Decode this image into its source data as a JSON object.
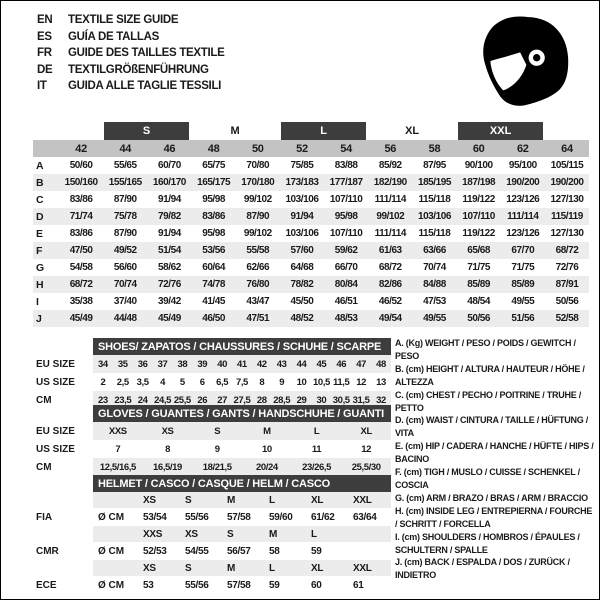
{
  "header": {
    "languages": [
      {
        "code": "EN",
        "text": "TEXTILE SIZE GUIDE"
      },
      {
        "code": "ES",
        "text": "GUÍA DE TALLAS"
      },
      {
        "code": "FR",
        "text": "GUIDE DES TAILLES TEXTILE"
      },
      {
        "code": "DE",
        "text": "TEXTILGRÖßENFÜHRUNG"
      },
      {
        "code": "IT",
        "text": "GUIDA ALLE TAGLIE TESSILI"
      }
    ],
    "logo": "racing-helmet-icon"
  },
  "colors": {
    "dark_bar": "#3d3d3d",
    "size_band": "#c3c3c3",
    "row_stripe": "#ececec",
    "text": "#1a1a1a"
  },
  "main_table": {
    "groups": [
      {
        "label": "S",
        "style": "dark"
      },
      {
        "label": "M",
        "style": "light"
      },
      {
        "label": "L",
        "style": "dark"
      },
      {
        "label": "XL",
        "style": "light"
      },
      {
        "label": "XXL",
        "style": "dark"
      }
    ],
    "sizes": [
      "42",
      "44",
      "46",
      "48",
      "50",
      "52",
      "54",
      "56",
      "58",
      "60",
      "62",
      "64"
    ],
    "rows": [
      {
        "label": "A",
        "values": [
          "50/60",
          "55/65",
          "60/70",
          "65/75",
          "70/80",
          "75/85",
          "83/88",
          "85/92",
          "87/95",
          "90/100",
          "95/100",
          "105/115"
        ]
      },
      {
        "label": "B",
        "values": [
          "150/160",
          "155/165",
          "160/170",
          "165/175",
          "170/180",
          "173/183",
          "177/187",
          "182/190",
          "185/195",
          "187/198",
          "190/200",
          "190/200"
        ]
      },
      {
        "label": "C",
        "values": [
          "83/86",
          "87/90",
          "91/94",
          "95/98",
          "99/102",
          "103/106",
          "107/110",
          "111/114",
          "115/118",
          "119/122",
          "123/126",
          "127/130"
        ]
      },
      {
        "label": "D",
        "values": [
          "71/74",
          "75/78",
          "79/82",
          "83/86",
          "87/90",
          "91/94",
          "95/98",
          "99/102",
          "103/106",
          "107/110",
          "111/114",
          "115/119"
        ]
      },
      {
        "label": "E",
        "values": [
          "83/86",
          "87/90",
          "91/94",
          "95/98",
          "99/102",
          "103/106",
          "107/110",
          "111/114",
          "115/118",
          "119/122",
          "123/126",
          "127/130"
        ]
      },
      {
        "label": "F",
        "values": [
          "47/50",
          "49/52",
          "51/54",
          "53/56",
          "55/58",
          "57/60",
          "59/62",
          "61/63",
          "63/66",
          "65/68",
          "67/70",
          "68/72"
        ]
      },
      {
        "label": "G",
        "values": [
          "54/58",
          "56/60",
          "58/62",
          "60/64",
          "62/66",
          "64/68",
          "66/70",
          "68/72",
          "70/74",
          "71/75",
          "71/75",
          "72/76"
        ]
      },
      {
        "label": "H",
        "values": [
          "68/72",
          "70/74",
          "72/76",
          "74/78",
          "76/80",
          "78/82",
          "80/84",
          "82/86",
          "84/88",
          "85/89",
          "85/89",
          "87/91"
        ]
      },
      {
        "label": "I",
        "values": [
          "35/38",
          "37/40",
          "39/42",
          "41/45",
          "43/47",
          "45/50",
          "46/51",
          "46/52",
          "47/53",
          "48/54",
          "49/55",
          "50/56"
        ]
      },
      {
        "label": "J",
        "values": [
          "45/49",
          "44/48",
          "45/49",
          "46/50",
          "47/51",
          "48/52",
          "48/53",
          "49/54",
          "49/55",
          "50/56",
          "51/56",
          "52/58"
        ]
      }
    ]
  },
  "shoes_table": {
    "title": "SHOES/ ZAPATOS / CHAUSSURES / SCHUHE / SCARPE",
    "rows": [
      {
        "label": "EU SIZE",
        "shaded": true,
        "values": [
          "34",
          "35",
          "36",
          "37",
          "38",
          "39",
          "40",
          "41",
          "42",
          "43",
          "44",
          "45",
          "46",
          "47",
          "48"
        ]
      },
      {
        "label": "US SIZE",
        "shaded": false,
        "values": [
          "2",
          "2,5",
          "3,5",
          "4",
          "5",
          "6",
          "6,5",
          "7,5",
          "8",
          "9",
          "10",
          "10,5",
          "11,5",
          "12",
          "13"
        ]
      },
      {
        "label": "CM",
        "shaded": true,
        "values": [
          "23",
          "23,5",
          "24",
          "24,5",
          "25,5",
          "26",
          "27",
          "27,5",
          "28",
          "28,5",
          "29",
          "30",
          "30,5",
          "31,5",
          "32"
        ]
      }
    ]
  },
  "gloves_table": {
    "title": "GLOVES / GUANTES / GANTS / HANDSCHUHE / GUANTI",
    "rows": [
      {
        "label": "EU SIZE",
        "shaded": true,
        "values": [
          "XXS",
          "XS",
          "S",
          "M",
          "L",
          "XL"
        ]
      },
      {
        "label": "US SIZE",
        "shaded": false,
        "values": [
          "7",
          "8",
          "9",
          "10",
          "11",
          "12"
        ]
      },
      {
        "label": "CM",
        "shaded": true,
        "values": [
          "12,5/16,5",
          "16,5/19",
          "18/21,5",
          "20/24",
          "23/26,5",
          "25,5/30"
        ]
      }
    ]
  },
  "helmet_table": {
    "title": "HELMET / CASCO / CASQUE / HELM / CASCO",
    "groups": [
      {
        "label": "FIA",
        "unit": "Ø CM",
        "sizes": [
          "XS",
          "S",
          "M",
          "L",
          "XL",
          "XXL"
        ],
        "values": [
          "53/54",
          "55/56",
          "57/58",
          "59/60",
          "61/62",
          "63/64"
        ]
      },
      {
        "label": "CMR",
        "unit": "Ø CM",
        "sizes": [
          "XXS",
          "XS",
          "S",
          "M",
          "L",
          ""
        ],
        "values": [
          "52/53",
          "54/55",
          "56/57",
          "58",
          "59",
          ""
        ]
      },
      {
        "label": "ECE",
        "unit": "Ø CM",
        "sizes": [
          "XS",
          "S",
          "M",
          "L",
          "XL",
          "XXL"
        ],
        "values": [
          "53",
          "55/56",
          "57/58",
          "59",
          "60",
          "61"
        ]
      }
    ]
  },
  "legend": {
    "items": [
      "A. (Kg) WEIGHT / PESO / POIDS / GEWITCH / PESO",
      "B. (cm) HEIGHT / ALTURA / HAUTEUR / HÖHE / ALTEZZA",
      "C. (cm) CHEST / PECHO / POITRINE / TRUHE / PETTO",
      "D. (cm) WAIST / CINTURA / TAILLE / HÜFTUNG / VITA",
      "E. (cm) HIP / CADERA / HANCHE / HÜFTE / HIPS /  BACINO",
      "F.  (cm) TIGH / MUSLO / CUISSE / SCHENKEL / COSCIA",
      "G. (cm) ARM  / BRAZO / BRAS / ARM / BRACCIO",
      "H. (cm) INSIDE LEG / ENTREPIERNA / FOURCHE / SCHRITT / FORCELLA",
      "I.  (cm) SHOULDERS / HOMBROS / ÉPAULES / SCHULTERN / SPALLE",
      "J. (cm) BACK / ESPALDA / DOS / ZURÜCK / INDIETRO"
    ]
  }
}
